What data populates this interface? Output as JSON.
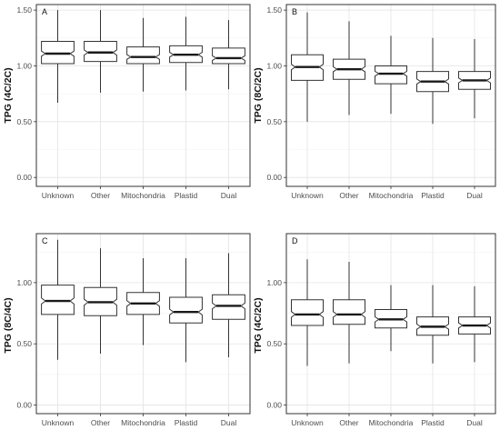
{
  "chart_data": [
    {
      "type": "box",
      "panel_label": "A",
      "ylabel": "TPG (4C/2C)",
      "categories": [
        "Unknown",
        "Other",
        "Mitochondria",
        "Plastid",
        "Dual"
      ],
      "yticks": [
        "0.00",
        "0.50",
        "1.00",
        "1.50"
      ],
      "ylim": [
        -0.08,
        1.55
      ],
      "grid": true,
      "boxes": [
        {
          "min": 0.67,
          "q1": 1.02,
          "median": 1.11,
          "q3": 1.22,
          "max": 1.5
        },
        {
          "min": 0.76,
          "q1": 1.04,
          "median": 1.12,
          "q3": 1.22,
          "max": 1.5
        },
        {
          "min": 0.77,
          "q1": 1.02,
          "median": 1.08,
          "q3": 1.17,
          "max": 1.43
        },
        {
          "min": 0.78,
          "q1": 1.03,
          "median": 1.1,
          "q3": 1.18,
          "max": 1.44
        },
        {
          "min": 0.79,
          "q1": 1.02,
          "median": 1.07,
          "q3": 1.16,
          "max": 1.41
        }
      ]
    },
    {
      "type": "box",
      "panel_label": "B",
      "ylabel": "TPG (8C/2C)",
      "categories": [
        "Unknown",
        "Other",
        "Mitochondria",
        "Plastid",
        "Dual"
      ],
      "yticks": [
        "0.00",
        "0.50",
        "1.00",
        "1.50"
      ],
      "ylim": [
        -0.08,
        1.55
      ],
      "grid": true,
      "boxes": [
        {
          "min": 0.5,
          "q1": 0.87,
          "median": 0.99,
          "q3": 1.1,
          "max": 1.48
        },
        {
          "min": 0.56,
          "q1": 0.88,
          "median": 0.97,
          "q3": 1.06,
          "max": 1.4
        },
        {
          "min": 0.57,
          "q1": 0.84,
          "median": 0.93,
          "q3": 1.0,
          "max": 1.27
        },
        {
          "min": 0.48,
          "q1": 0.77,
          "median": 0.86,
          "q3": 0.95,
          "max": 1.25
        },
        {
          "min": 0.53,
          "q1": 0.79,
          "median": 0.87,
          "q3": 0.95,
          "max": 1.24
        }
      ]
    },
    {
      "type": "box",
      "panel_label": "C",
      "ylabel": "TPG (8C/4C)",
      "categories": [
        "Unknown",
        "Other",
        "Mitochondria",
        "Plastid",
        "Dual"
      ],
      "yticks": [
        "0.00",
        "0.50",
        "1.00"
      ],
      "ylim": [
        -0.07,
        1.4
      ],
      "grid": true,
      "boxes": [
        {
          "min": 0.37,
          "q1": 0.74,
          "median": 0.85,
          "q3": 0.98,
          "max": 1.35
        },
        {
          "min": 0.42,
          "q1": 0.73,
          "median": 0.84,
          "q3": 0.96,
          "max": 1.28
        },
        {
          "min": 0.49,
          "q1": 0.74,
          "median": 0.83,
          "q3": 0.92,
          "max": 1.2
        },
        {
          "min": 0.35,
          "q1": 0.67,
          "median": 0.76,
          "q3": 0.88,
          "max": 1.2
        },
        {
          "min": 0.39,
          "q1": 0.7,
          "median": 0.81,
          "q3": 0.9,
          "max": 1.24
        }
      ]
    },
    {
      "type": "box",
      "panel_label": "D",
      "ylabel": "TPG (4C/2C)",
      "categories": [
        "Unknown",
        "Other",
        "Mitochondria",
        "Plastid",
        "Dual"
      ],
      "yticks": [
        "0.00",
        "0.50",
        "1.00"
      ],
      "ylim": [
        -0.07,
        1.4
      ],
      "grid": true,
      "boxes": [
        {
          "min": 0.32,
          "q1": 0.65,
          "median": 0.74,
          "q3": 0.86,
          "max": 1.19
        },
        {
          "min": 0.34,
          "q1": 0.66,
          "median": 0.74,
          "q3": 0.86,
          "max": 1.17
        },
        {
          "min": 0.44,
          "q1": 0.63,
          "median": 0.7,
          "q3": 0.78,
          "max": 0.98
        },
        {
          "min": 0.34,
          "q1": 0.57,
          "median": 0.64,
          "q3": 0.72,
          "max": 0.98
        },
        {
          "min": 0.35,
          "q1": 0.58,
          "median": 0.65,
          "q3": 0.72,
          "max": 0.97
        }
      ]
    }
  ]
}
